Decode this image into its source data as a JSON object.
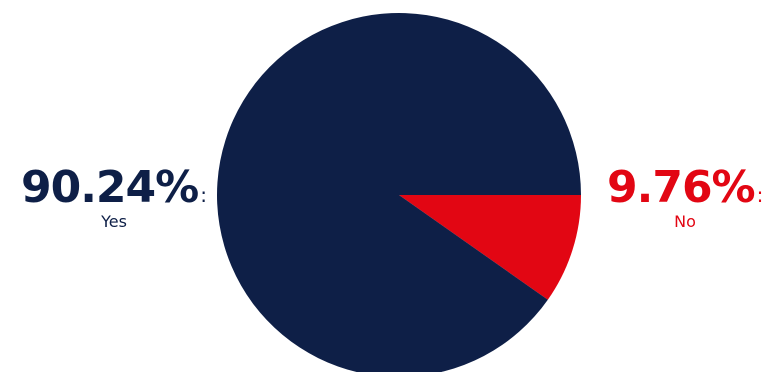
{
  "chart_data": {
    "type": "pie",
    "slices": [
      {
        "label": "Yes",
        "value": 90.24,
        "display": "90.24%",
        "color": "#0e1f47"
      },
      {
        "label": "No",
        "value": 9.76,
        "display": "9.76%",
        "color": "#e20613"
      }
    ],
    "start_angle_deg": 0,
    "direction": "clockwise"
  },
  "callouts": {
    "separator": ":"
  }
}
